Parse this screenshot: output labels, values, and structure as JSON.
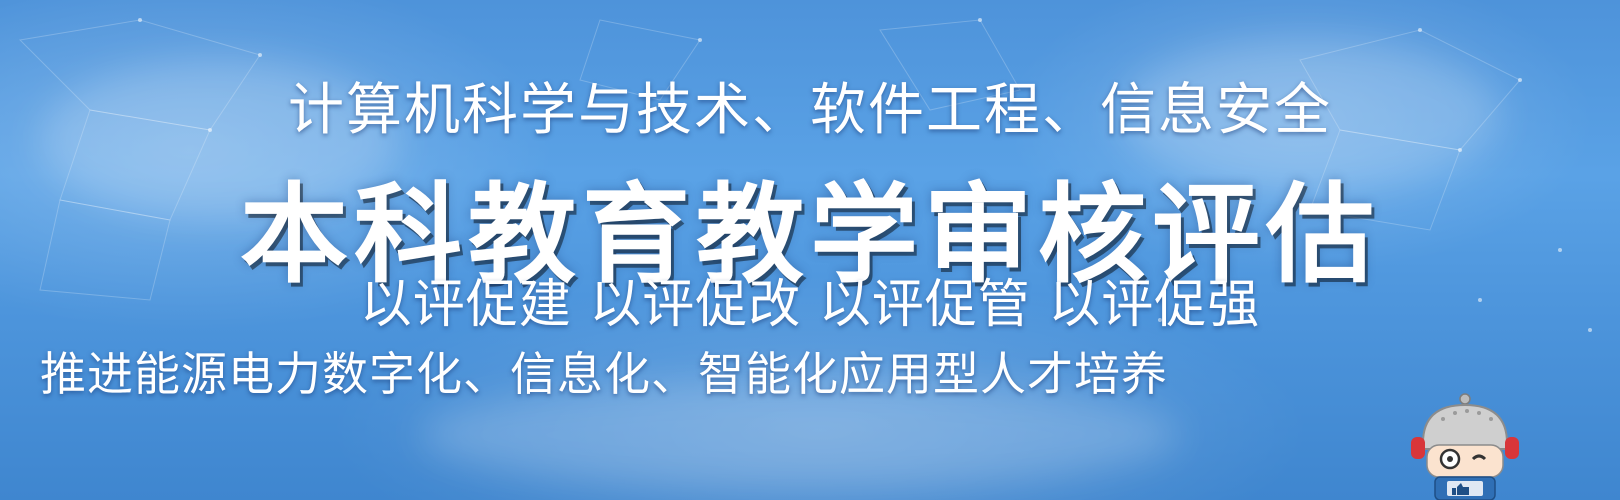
{
  "banner": {
    "line1": "计算机科学与技术、软件工程、信息安全",
    "line2": "本科教育教学审核评估",
    "line3": "以评促建 以评促改  以评促管 以评促强",
    "line4": "推进能源电力数字化、信息化、智能化应用型人才培养"
  },
  "colors": {
    "sky_top": "#4e93da",
    "sky_bottom": "#3f86cf",
    "text": "#ffffff",
    "mascot_helmet": "#c9c9c9",
    "mascot_ears": "#d8363a",
    "mascot_body": "#2f6fb5"
  },
  "icons": {
    "mascot": "robot-mascot-icon"
  }
}
